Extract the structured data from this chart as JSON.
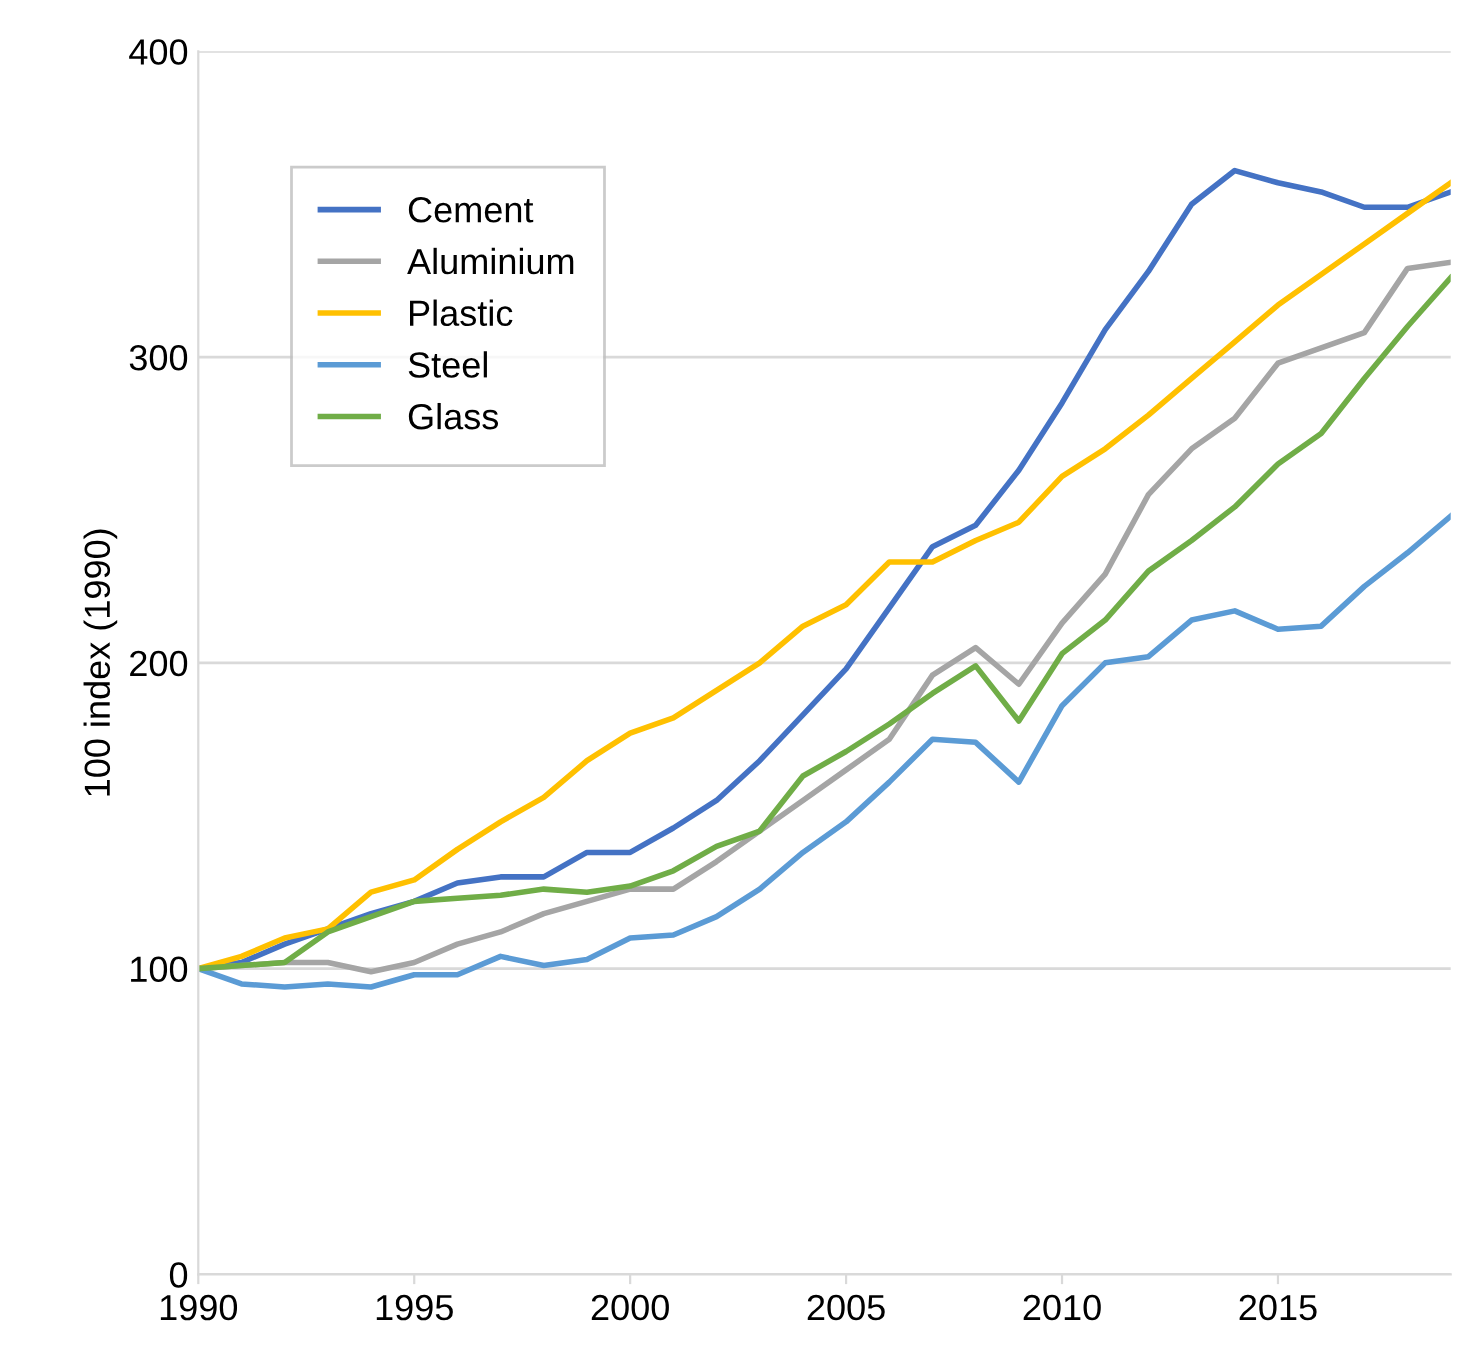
{
  "chart_data": {
    "type": "line",
    "ylabel": "100 index (1990)",
    "x": [
      1990,
      1991,
      1992,
      1993,
      1994,
      1995,
      1996,
      1997,
      1998,
      1999,
      2000,
      2001,
      2002,
      2003,
      2004,
      2005,
      2006,
      2007,
      2008,
      2009,
      2010,
      2011,
      2012,
      2013,
      2014,
      2015,
      2016,
      2017,
      2018,
      2019
    ],
    "series": [
      {
        "name": "Cement",
        "color": "#4472c4",
        "values": [
          100,
          102,
          108,
          113,
          118,
          122,
          128,
          130,
          130,
          138,
          138,
          146,
          155,
          168,
          183,
          198,
          218,
          238,
          245,
          263,
          285,
          309,
          328,
          350,
          361,
          357,
          354,
          349,
          349,
          354
        ]
      },
      {
        "name": "Aluminium",
        "color": "#a5a5a5",
        "values": [
          100,
          101,
          102,
          102,
          99,
          102,
          108,
          112,
          118,
          122,
          126,
          126,
          135,
          145,
          155,
          165,
          175,
          196,
          205,
          193,
          213,
          229,
          255,
          270,
          280,
          298,
          303,
          308,
          329,
          331
        ]
      },
      {
        "name": "Plastic",
        "color": "#ffc000",
        "values": [
          100,
          104,
          110,
          113,
          125,
          129,
          139,
          148,
          156,
          168,
          177,
          182,
          191,
          200,
          212,
          219,
          233,
          233,
          240,
          246,
          261,
          270,
          281,
          293,
          305,
          317,
          327,
          337,
          347,
          357
        ]
      },
      {
        "name": "Steel",
        "color": "#5b9bd5",
        "values": [
          100,
          95,
          94,
          95,
          94,
          98,
          98,
          104,
          101,
          103,
          110,
          111,
          117,
          126,
          138,
          148,
          161,
          175,
          174,
          161,
          186,
          200,
          202,
          214,
          217,
          211,
          212,
          225,
          236,
          248
        ]
      },
      {
        "name": "Glass",
        "color": "#70ad47",
        "values": [
          100,
          101,
          102,
          112,
          117,
          122,
          123,
          124,
          126,
          125,
          127,
          132,
          140,
          145,
          163,
          171,
          180,
          190,
          199,
          181,
          203,
          214,
          230,
          240,
          251,
          265,
          275,
          293,
          310,
          326
        ]
      }
    ],
    "xlim": [
      1990,
      2019
    ],
    "xticks": [
      1990,
      1995,
      2000,
      2005,
      2010,
      2015
    ],
    "ylim": [
      0,
      400
    ],
    "yticks": [
      0,
      100,
      200,
      300,
      400
    ],
    "grid": "y",
    "legend": "top left",
    "marker": "none",
    "line_style": "solid"
  }
}
